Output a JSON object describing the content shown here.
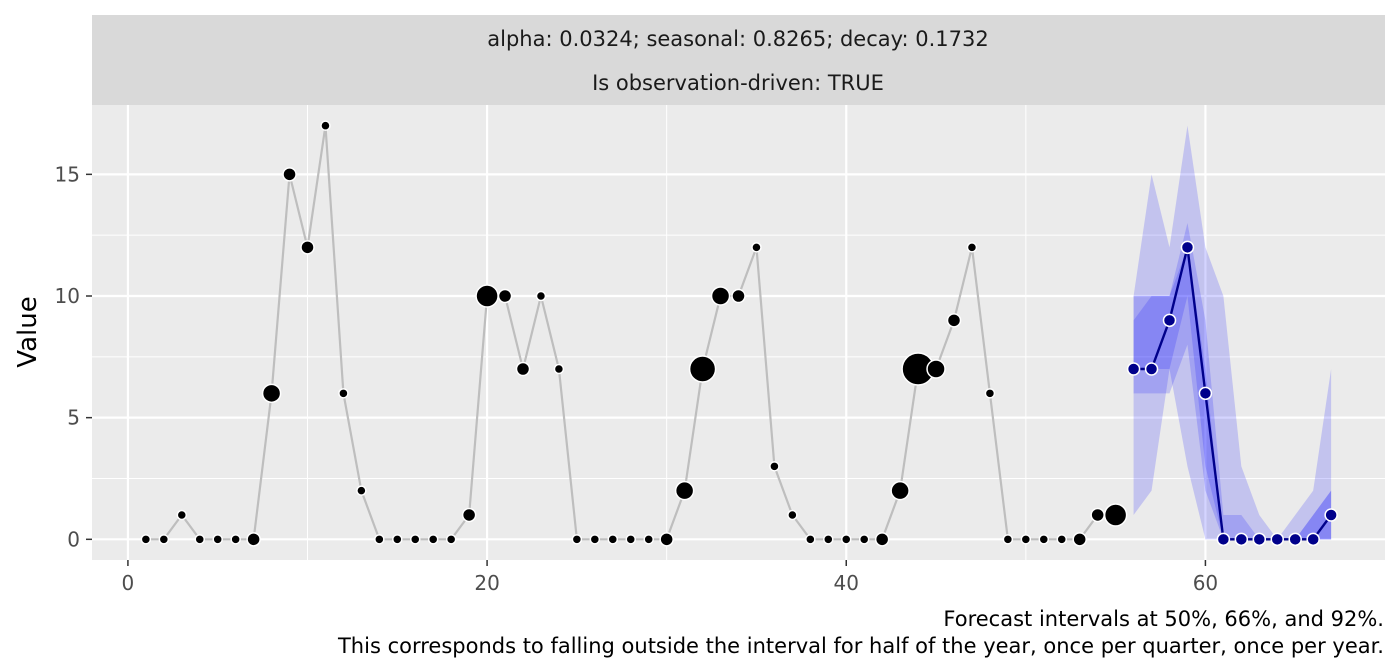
{
  "strip": {
    "line1": "alpha: 0.0324; seasonal: 0.8265; decay: 0.1732",
    "line2": "Is observation-driven: TRUE"
  },
  "caption": {
    "line1": "Forecast intervals at 50%, 66%, and 92%.",
    "line2": "This corresponds to falling outside the interval for half of the year, once per quarter, once per year."
  },
  "colors": {
    "panel_bg": "#EBEBEB",
    "strip_bg": "#D9D9D9",
    "grid": "#FFFFFF",
    "observed_line": "#BEBEBE",
    "observed_point": "#000000",
    "forecast_line": "#00008B",
    "forecast_point": "#00008B",
    "interval_fill": "#0000FF"
  },
  "chart_data": {
    "type": "line",
    "xlabel": "",
    "ylabel": "Value",
    "xlim": [
      -2,
      70
    ],
    "ylim": [
      -0.85,
      17.85
    ],
    "x_ticks": [
      0,
      20,
      40,
      60
    ],
    "y_ticks": [
      0,
      5,
      10,
      15
    ],
    "observed": {
      "x": [
        1,
        2,
        3,
        4,
        5,
        6,
        7,
        8,
        9,
        10,
        11,
        12,
        13,
        14,
        15,
        16,
        17,
        18,
        19,
        20,
        21,
        22,
        23,
        24,
        25,
        26,
        27,
        28,
        29,
        30,
        31,
        32,
        33,
        34,
        35,
        36,
        37,
        38,
        39,
        40,
        41,
        42,
        43,
        44,
        45,
        46,
        47,
        48,
        49,
        50,
        51,
        52,
        53,
        54,
        55
      ],
      "y": [
        0,
        0,
        1,
        0,
        0,
        0,
        0,
        6,
        15,
        12,
        17,
        6,
        2,
        0,
        0,
        0,
        0,
        0,
        1,
        10,
        10,
        7,
        10,
        7,
        0,
        0,
        0,
        0,
        0,
        0,
        2,
        7,
        10,
        10,
        12,
        3,
        1,
        0,
        0,
        0,
        0,
        0,
        2,
        7,
        7,
        9,
        12,
        6,
        0,
        0,
        0,
        0,
        0,
        1,
        1
      ],
      "point_weight": [
        1,
        1,
        1,
        1,
        1,
        1,
        2,
        3,
        2,
        2,
        1,
        1,
        1,
        1,
        1,
        1,
        1,
        1,
        2,
        4,
        2,
        2,
        1,
        1,
        1,
        1,
        1,
        1,
        1,
        2,
        3,
        5,
        3,
        2,
        1,
        1,
        1,
        1,
        1,
        1,
        1,
        2,
        3,
        6,
        3,
        2,
        1,
        1,
        1,
        1,
        1,
        1,
        2,
        2,
        4
      ]
    },
    "forecast": {
      "x": [
        56,
        57,
        58,
        59,
        60,
        61,
        62,
        63,
        64,
        65,
        66,
        67
      ],
      "y": [
        7,
        7,
        9,
        12,
        6,
        0,
        0,
        0,
        0,
        0,
        0,
        1
      ],
      "interval_50": {
        "lower": [
          7,
          7,
          7,
          10,
          3,
          0,
          0,
          0,
          0,
          0,
          0,
          0
        ],
        "upper": [
          9,
          10,
          10,
          12,
          7,
          0,
          0,
          0,
          0,
          0,
          1,
          2
        ]
      },
      "interval_66": {
        "lower": [
          6,
          6,
          6,
          8,
          2,
          0,
          0,
          0,
          0,
          0,
          0,
          0
        ],
        "upper": [
          10,
          10,
          10,
          13,
          9,
          1,
          1,
          0,
          0,
          0,
          1,
          2
        ]
      },
      "interval_92": {
        "lower": [
          1,
          2,
          7,
          3,
          0,
          0,
          0,
          0,
          0,
          0,
          0,
          0
        ],
        "upper": [
          10,
          15,
          12,
          17,
          12,
          10,
          3,
          1,
          0,
          1,
          2,
          7
        ]
      }
    }
  }
}
